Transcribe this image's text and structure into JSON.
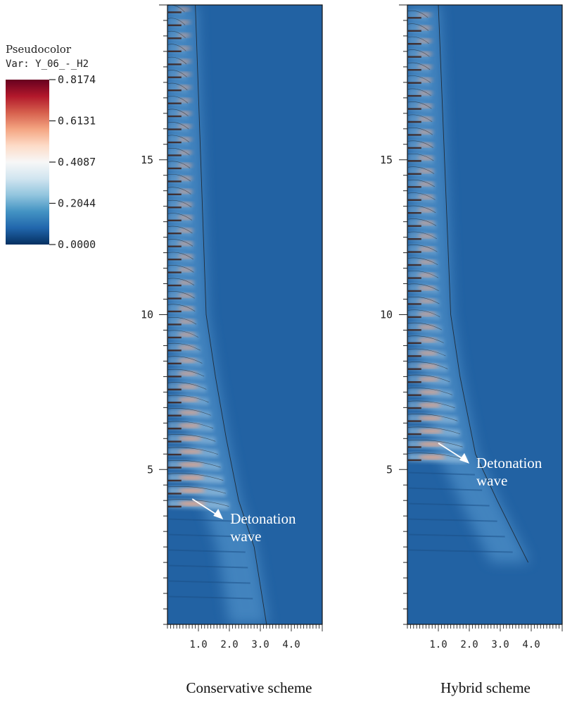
{
  "chart_data": [
    {
      "type": "heatmap",
      "caption": "Conservative scheme",
      "variable": "Y_06_-_H2",
      "xticks": [
        "1.0",
        "2.0",
        "3.0",
        "4.0"
      ],
      "xlim": [
        0,
        5
      ],
      "yticks": [
        "5",
        "10",
        "15"
      ],
      "ylim": [
        0,
        20
      ],
      "annotation": {
        "line1": "Detonation",
        "line2": "wave",
        "x": 1.8,
        "y": 3.3
      },
      "cell_region": {
        "ystart": 3.9,
        "yend": 20.0
      },
      "front": {
        "y": [
          0,
          2.5,
          4.0,
          6.0,
          8.0,
          10.0,
          20.0
        ],
        "x": [
          2.9,
          2.5,
          2.0,
          1.6,
          1.25,
          0.95,
          0.6
        ]
      }
    },
    {
      "type": "heatmap",
      "caption": "Hybrid scheme",
      "variable": "Y_06_-_H2",
      "xticks": [
        "1.0",
        "2.0",
        "3.0",
        "4.0"
      ],
      "xlim": [
        0,
        5
      ],
      "yticks": [
        "5",
        "10",
        "15"
      ],
      "ylim": [
        0,
        20
      ],
      "annotation": {
        "line1": "Detonation",
        "line2": "wave",
        "x": 2.0,
        "y": 5.1
      },
      "cell_region": {
        "ystart": 5.4,
        "yend": 20.0
      },
      "front": {
        "y": [
          2.0,
          4.0,
          5.5,
          8.0,
          10.0,
          20.0
        ],
        "x": [
          3.6,
          2.6,
          1.9,
          1.4,
          1.1,
          0.7
        ]
      }
    }
  ],
  "legend": {
    "title": "Pseudocolor",
    "var_label": "Var: Y_06_-_H2",
    "ticks": [
      "0.8174",
      "0.6131",
      "0.4087",
      "0.2044",
      "0.0000"
    ],
    "min": 0.0,
    "max": 0.8174,
    "colors": [
      "#67001f",
      "#b2182b",
      "#d6604d",
      "#f4a582",
      "#fddbc7",
      "#f7f7f7",
      "#d1e5f0",
      "#92c5de",
      "#4393c3",
      "#2166ac",
      "#053061"
    ]
  },
  "colors": {
    "background_field": "#2262a3",
    "front_field": "#4d8fc8",
    "contour": "#1a1a1a"
  }
}
